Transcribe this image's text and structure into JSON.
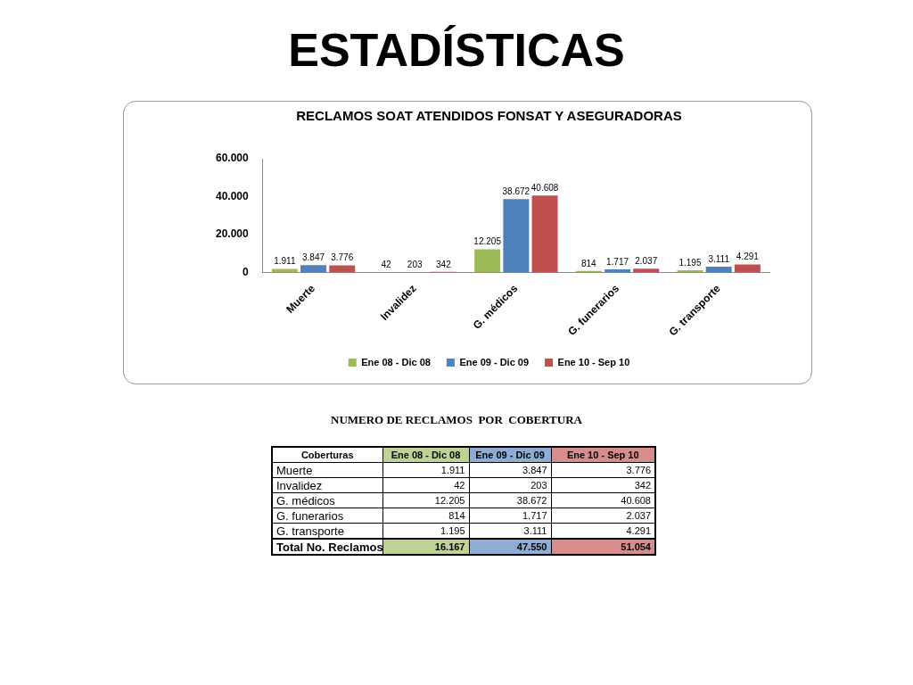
{
  "chart_data": {
    "type": "bar",
    "title": "ESTADÍSTICAS",
    "subtitle": "RECLAMOS SOAT ATENDIDOS FONSAT Y ASEGURADORAS",
    "categories": [
      "Muerte",
      "Invalidez",
      "G. médicos",
      "G. funerarios",
      "G. transporte"
    ],
    "series": [
      {
        "name": "Ene 08 - Dic 08",
        "color": "#9bbb59",
        "values": [
          1911,
          42,
          12205,
          814,
          1195
        ],
        "value_labels": [
          "1.911",
          "42",
          "12.205",
          "814",
          "1.195"
        ]
      },
      {
        "name": "Ene 09 - Dic 09",
        "color": "#4f81bd",
        "values": [
          3847,
          203,
          38672,
          1717,
          3111
        ],
        "value_labels": [
          "3.847",
          "203",
          "38.672",
          "1.717",
          "3.111"
        ]
      },
      {
        "name": "Ene 10 - Sep 10",
        "color": "#c0504d",
        "values": [
          3776,
          342,
          40608,
          2037,
          4291
        ],
        "value_labels": [
          "3.776",
          "342",
          "40.608",
          "2.037",
          "4.291"
        ]
      }
    ],
    "ylim": [
      0,
      60000
    ],
    "yticks": [
      0,
      {
        "value": 20000,
        "label": "20.000"
      },
      {
        "value": 40000,
        "label": "40.000"
      },
      {
        "value": 60000,
        "label": "60.000"
      }
    ],
    "grid": false,
    "legend": "bottom",
    "annotations": [
      "NUMERO DE RECLAMOS  POR  COBERTURA",
      "Coberturas",
      "Total No. Reclamos",
      "16.167",
      "47.550",
      "51.054"
    ]
  }
}
